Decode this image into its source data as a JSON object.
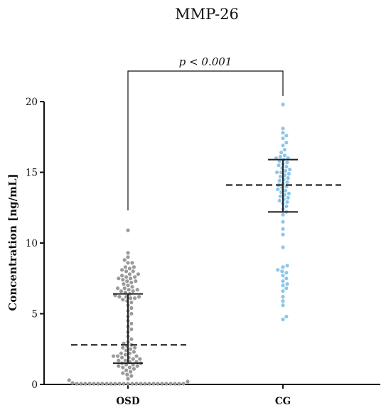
{
  "chart_data": {
    "type": "scatter",
    "title": "MMP-26",
    "xlabel": "",
    "ylabel": "Concentration [ng/mL]",
    "ylim": [
      0,
      20
    ],
    "yticks": [
      0,
      5,
      10,
      15,
      20
    ],
    "categories": [
      "OSD",
      "CG"
    ],
    "annotation": "p < 0.001",
    "grid": false,
    "series": [
      {
        "category": "OSD",
        "color": "#9a9a9a",
        "median": 2.8,
        "q1": 1.5,
        "q3": 6.4,
        "values": [
          10.9,
          9.3,
          9.0,
          8.8,
          8.6,
          8.6,
          8.3,
          8.3,
          8.2,
          8.1,
          8.0,
          8.0,
          7.8,
          7.8,
          7.7,
          7.6,
          7.6,
          7.5,
          7.5,
          7.4,
          7.3,
          7.3,
          7.2,
          7.1,
          7.0,
          6.9,
          6.8,
          6.8,
          6.7,
          6.7,
          6.6,
          6.6,
          6.5,
          6.4,
          6.3,
          6.2,
          6.2,
          6.2,
          6.1,
          6.1,
          6.0,
          5.9,
          5.8,
          5.6,
          5.4,
          5.2,
          5.0,
          4.8,
          4.5,
          4.3,
          4.1,
          3.9,
          3.7,
          3.4,
          3.2,
          3.0,
          2.9,
          2.8,
          2.7,
          2.6,
          2.6,
          2.5,
          2.4,
          2.3,
          2.2,
          2.2,
          2.1,
          2.0,
          2.0,
          2.0,
          1.9,
          1.9,
          1.8,
          1.8,
          1.7,
          1.7,
          1.6,
          1.6,
          1.5,
          1.5,
          1.4,
          1.4,
          1.3,
          1.3,
          1.2,
          1.2,
          1.1,
          1.0,
          0.9,
          0.8,
          0.7,
          0.6,
          0.4,
          0.3,
          0.2,
          0.1,
          0.05,
          0.05,
          0.05,
          0.05,
          0.05,
          0.05,
          0.05,
          0.05,
          0.05,
          0.05,
          0.05,
          0.05,
          0.05,
          0.05,
          0.05,
          0.05,
          0.05,
          0.05,
          0.05,
          0.05,
          0.05,
          0.05,
          0.05,
          0.05,
          0.05,
          0.05
        ]
      },
      {
        "category": "CG",
        "color": "#8fc6e8",
        "median": 14.1,
        "q1": 12.2,
        "q3": 15.9,
        "values": [
          19.8,
          18.1,
          17.8,
          17.6,
          17.4,
          17.1,
          16.9,
          16.6,
          16.4,
          16.2,
          16.1,
          16.0,
          16.0,
          15.9,
          15.8,
          15.7,
          15.6,
          15.5,
          15.4,
          15.3,
          15.2,
          15.1,
          15.0,
          15.0,
          14.9,
          14.8,
          14.7,
          14.6,
          14.5,
          14.4,
          14.3,
          14.2,
          14.1,
          14.0,
          13.9,
          13.8,
          13.7,
          13.6,
          13.5,
          13.4,
          13.3,
          13.2,
          13.1,
          13.0,
          12.9,
          12.8,
          12.6,
          12.4,
          12.2,
          12.0,
          11.5,
          11.0,
          10.6,
          9.7,
          8.4,
          8.3,
          8.1,
          8.0,
          7.9,
          7.7,
          7.5,
          7.3,
          7.1,
          7.0,
          6.8,
          6.6,
          6.2,
          5.9,
          5.6,
          4.8,
          4.6
        ]
      }
    ]
  }
}
